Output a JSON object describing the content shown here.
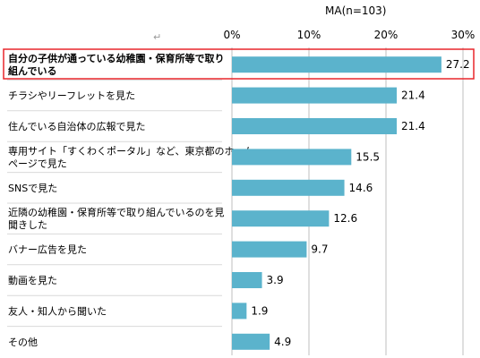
{
  "chart_data": {
    "type": "bar",
    "orientation": "horizontal",
    "subtitle": "MA(n=103)",
    "mark": "↵",
    "xlim": [
      0,
      30
    ],
    "xticks": [
      "0%",
      "10%",
      "20%",
      "30%"
    ],
    "categories": [
      [
        "自分の子供が通っている幼稚園・保育所等で取り",
        "組んでいる"
      ],
      [
        "チラシやリーフレットを見た"
      ],
      [
        "住んでいる自治体の広報で見た"
      ],
      [
        "専用サイト「すくわくポータル」など、東京都のホーム",
        "ページで見た"
      ],
      [
        "SNSで見た"
      ],
      [
        "近隣の幼稚園・保育所等で取り組んでいるのを見",
        "聞きした"
      ],
      [
        "バナー広告を見た"
      ],
      [
        "動画を見た"
      ],
      [
        "友人・知人から聞いた"
      ],
      [
        "その他"
      ]
    ],
    "values": [
      27.2,
      21.4,
      21.4,
      15.5,
      14.6,
      12.6,
      9.7,
      3.9,
      1.9,
      4.9
    ],
    "value_labels": [
      "27.2",
      "21.4",
      "21.4",
      "15.5",
      "14.6",
      "12.6",
      "9.7",
      "3.9",
      "1.9",
      "4.9"
    ],
    "highlight_index": 0,
    "colors": {
      "bar": "#5bb3cc",
      "highlight_border": "#e8262b",
      "grid": "#bfbfbf"
    }
  }
}
